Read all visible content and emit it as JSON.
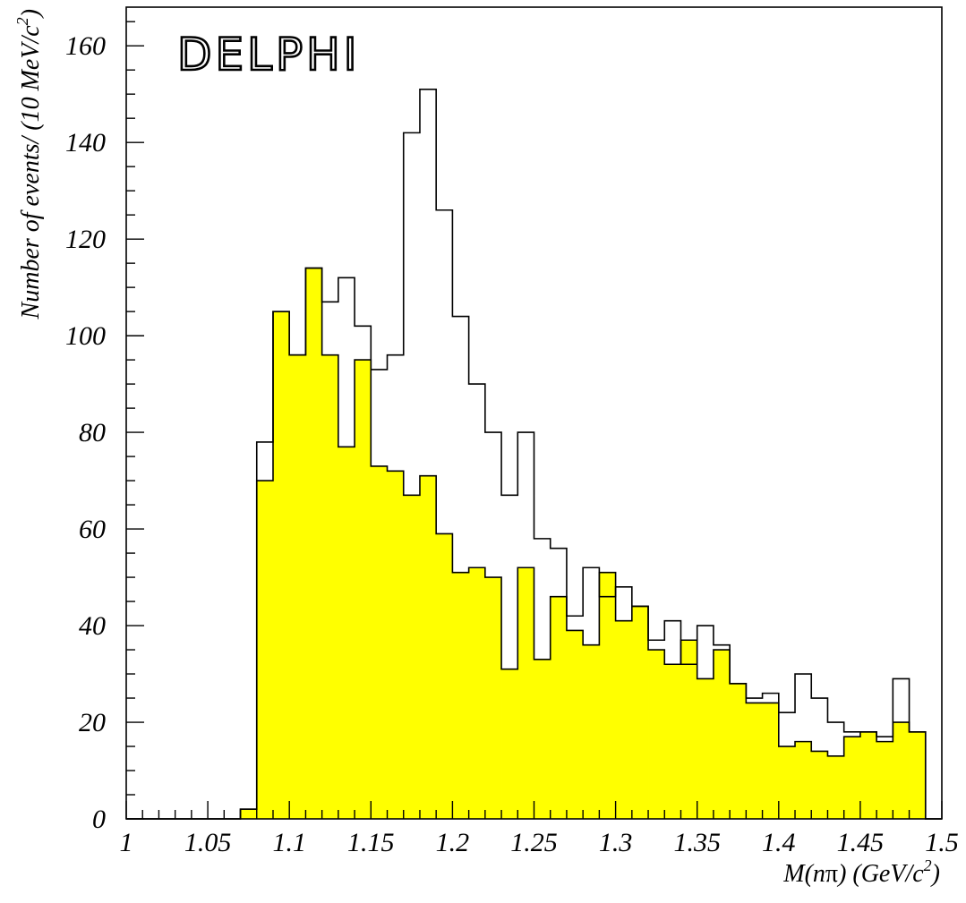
{
  "chart_data": {
    "type": "bar",
    "logo_text": "DELPHI",
    "xlabel": {
      "pre": "M(n",
      "greek": "π",
      "post": ") (GeV/c",
      "sup": "2",
      "close": ")"
    },
    "ylabel": {
      "main": "Number of events/ (10 MeV/c",
      "sup": "2",
      "close": ")"
    },
    "xlim": [
      1.0,
      1.5
    ],
    "ylim": [
      0,
      168
    ],
    "bin_width": 0.01,
    "bin_edges_start": 1.0,
    "x_ticks": [
      "1",
      "1.05",
      "1.1",
      "1.15",
      "1.2",
      "1.25",
      "1.3",
      "1.35",
      "1.4",
      "1.45",
      "1.5"
    ],
    "y_ticks": [
      "0",
      "20",
      "40",
      "60",
      "80",
      "100",
      "120",
      "140",
      "160"
    ],
    "colors": {
      "filled": "#ffff00",
      "line": "#000000"
    },
    "series": [
      {
        "style": "open-outline",
        "values": [
          0,
          0,
          0,
          0,
          0,
          0,
          0,
          2,
          78,
          105,
          96,
          114,
          107,
          112,
          102,
          93,
          96,
          142,
          151,
          126,
          104,
          90,
          80,
          67,
          80,
          58,
          56,
          42,
          52,
          46,
          48,
          44,
          37,
          41,
          32,
          40,
          36,
          28,
          25,
          26,
          22,
          30,
          25,
          20,
          18,
          18,
          17,
          29,
          18,
          0
        ]
      },
      {
        "style": "filled",
        "values": [
          0,
          0,
          0,
          0,
          0,
          0,
          0,
          2,
          70,
          105,
          96,
          114,
          96,
          77,
          95,
          73,
          72,
          67,
          71,
          59,
          51,
          52,
          50,
          31,
          52,
          33,
          46,
          39,
          36,
          51,
          41,
          44,
          35,
          32,
          37,
          29,
          35,
          28,
          24,
          24,
          15,
          16,
          14,
          13,
          17,
          18,
          16,
          20,
          18,
          0
        ]
      }
    ]
  }
}
